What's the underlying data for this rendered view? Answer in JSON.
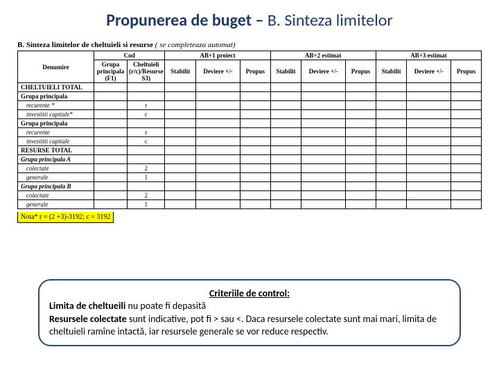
{
  "title": {
    "bold": "Propunerea de buget – ",
    "normal": "B. Sinteza limitelor"
  },
  "sectionHeader": {
    "label": "B. Sinteza limitelor de cheltuieli si  resurse ",
    "note": "( se completeaza automat)"
  },
  "table": {
    "periodGroups": [
      "Cod",
      "AB+1 proiect",
      "AB+2 estimat",
      "AB+3 estimat"
    ],
    "colHeaders": {
      "denumire": "Denumire",
      "grupa": "Grupa principala (F1)",
      "cheltuieli": "Cheltuieli (r/c)/Resurse S3)",
      "stabilit": "Stabilit",
      "deviere": "Deviere +/-",
      "propus": "Propus"
    },
    "rows": [
      {
        "label": "CHELTUIELI TOTAL",
        "bold": true,
        "italic": false,
        "indent": 0,
        "c1": "",
        "c2": ""
      },
      {
        "label": "Grupa principala",
        "bold": true,
        "italic": false,
        "indent": 0,
        "c1": "",
        "c2": ""
      },
      {
        "label": "recurente *",
        "bold": false,
        "italic": true,
        "indent": 1,
        "c1": "",
        "c2": "r"
      },
      {
        "label": "investitii capitale*",
        "bold": false,
        "italic": true,
        "indent": 1,
        "c1": "",
        "c2": "c"
      },
      {
        "label": "Grupa principala",
        "bold": true,
        "italic": false,
        "indent": 0,
        "c1": "",
        "c2": ""
      },
      {
        "label": "recurente",
        "bold": false,
        "italic": true,
        "indent": 1,
        "c1": "",
        "c2": "r"
      },
      {
        "label": "investitii capitale",
        "bold": false,
        "italic": true,
        "indent": 1,
        "c1": "",
        "c2": "c"
      },
      {
        "label": "RESURSE TOTAL",
        "bold": true,
        "italic": false,
        "indent": 0,
        "c1": "",
        "c2": ""
      },
      {
        "label": "Grupa principala A",
        "bold": true,
        "italic": true,
        "indent": 0,
        "c1": "",
        "c2": ""
      },
      {
        "label": "colectate",
        "bold": false,
        "italic": true,
        "indent": 1,
        "c1": "",
        "c2": "2"
      },
      {
        "label": "generale",
        "bold": false,
        "italic": true,
        "indent": 1,
        "c1": "",
        "c2": "1"
      },
      {
        "label": "Grupa principala B",
        "bold": true,
        "italic": true,
        "indent": 0,
        "c1": "",
        "c2": ""
      },
      {
        "label": "colectate",
        "bold": false,
        "italic": true,
        "indent": 1,
        "c1": "",
        "c2": "2"
      },
      {
        "label": "generale",
        "bold": false,
        "italic": true,
        "indent": 1,
        "c1": "",
        "c2": "1"
      }
    ]
  },
  "footnote": "Nota* r = (2 +3)-3192; c = 3192",
  "criteria": {
    "title": "Criteriile de control:",
    "line1_b": "Limita de cheltueili ",
    "line1": "nu poate fi depasită",
    "line2_b": "Resursele  colectate  ",
    "line2": "sunt indicative, pot fi > sau <. Daca resursele colectate sunt mai mari,  limita de cheltuieli ramîne intactă, iar resursele generale se vor reduce respectiv."
  }
}
